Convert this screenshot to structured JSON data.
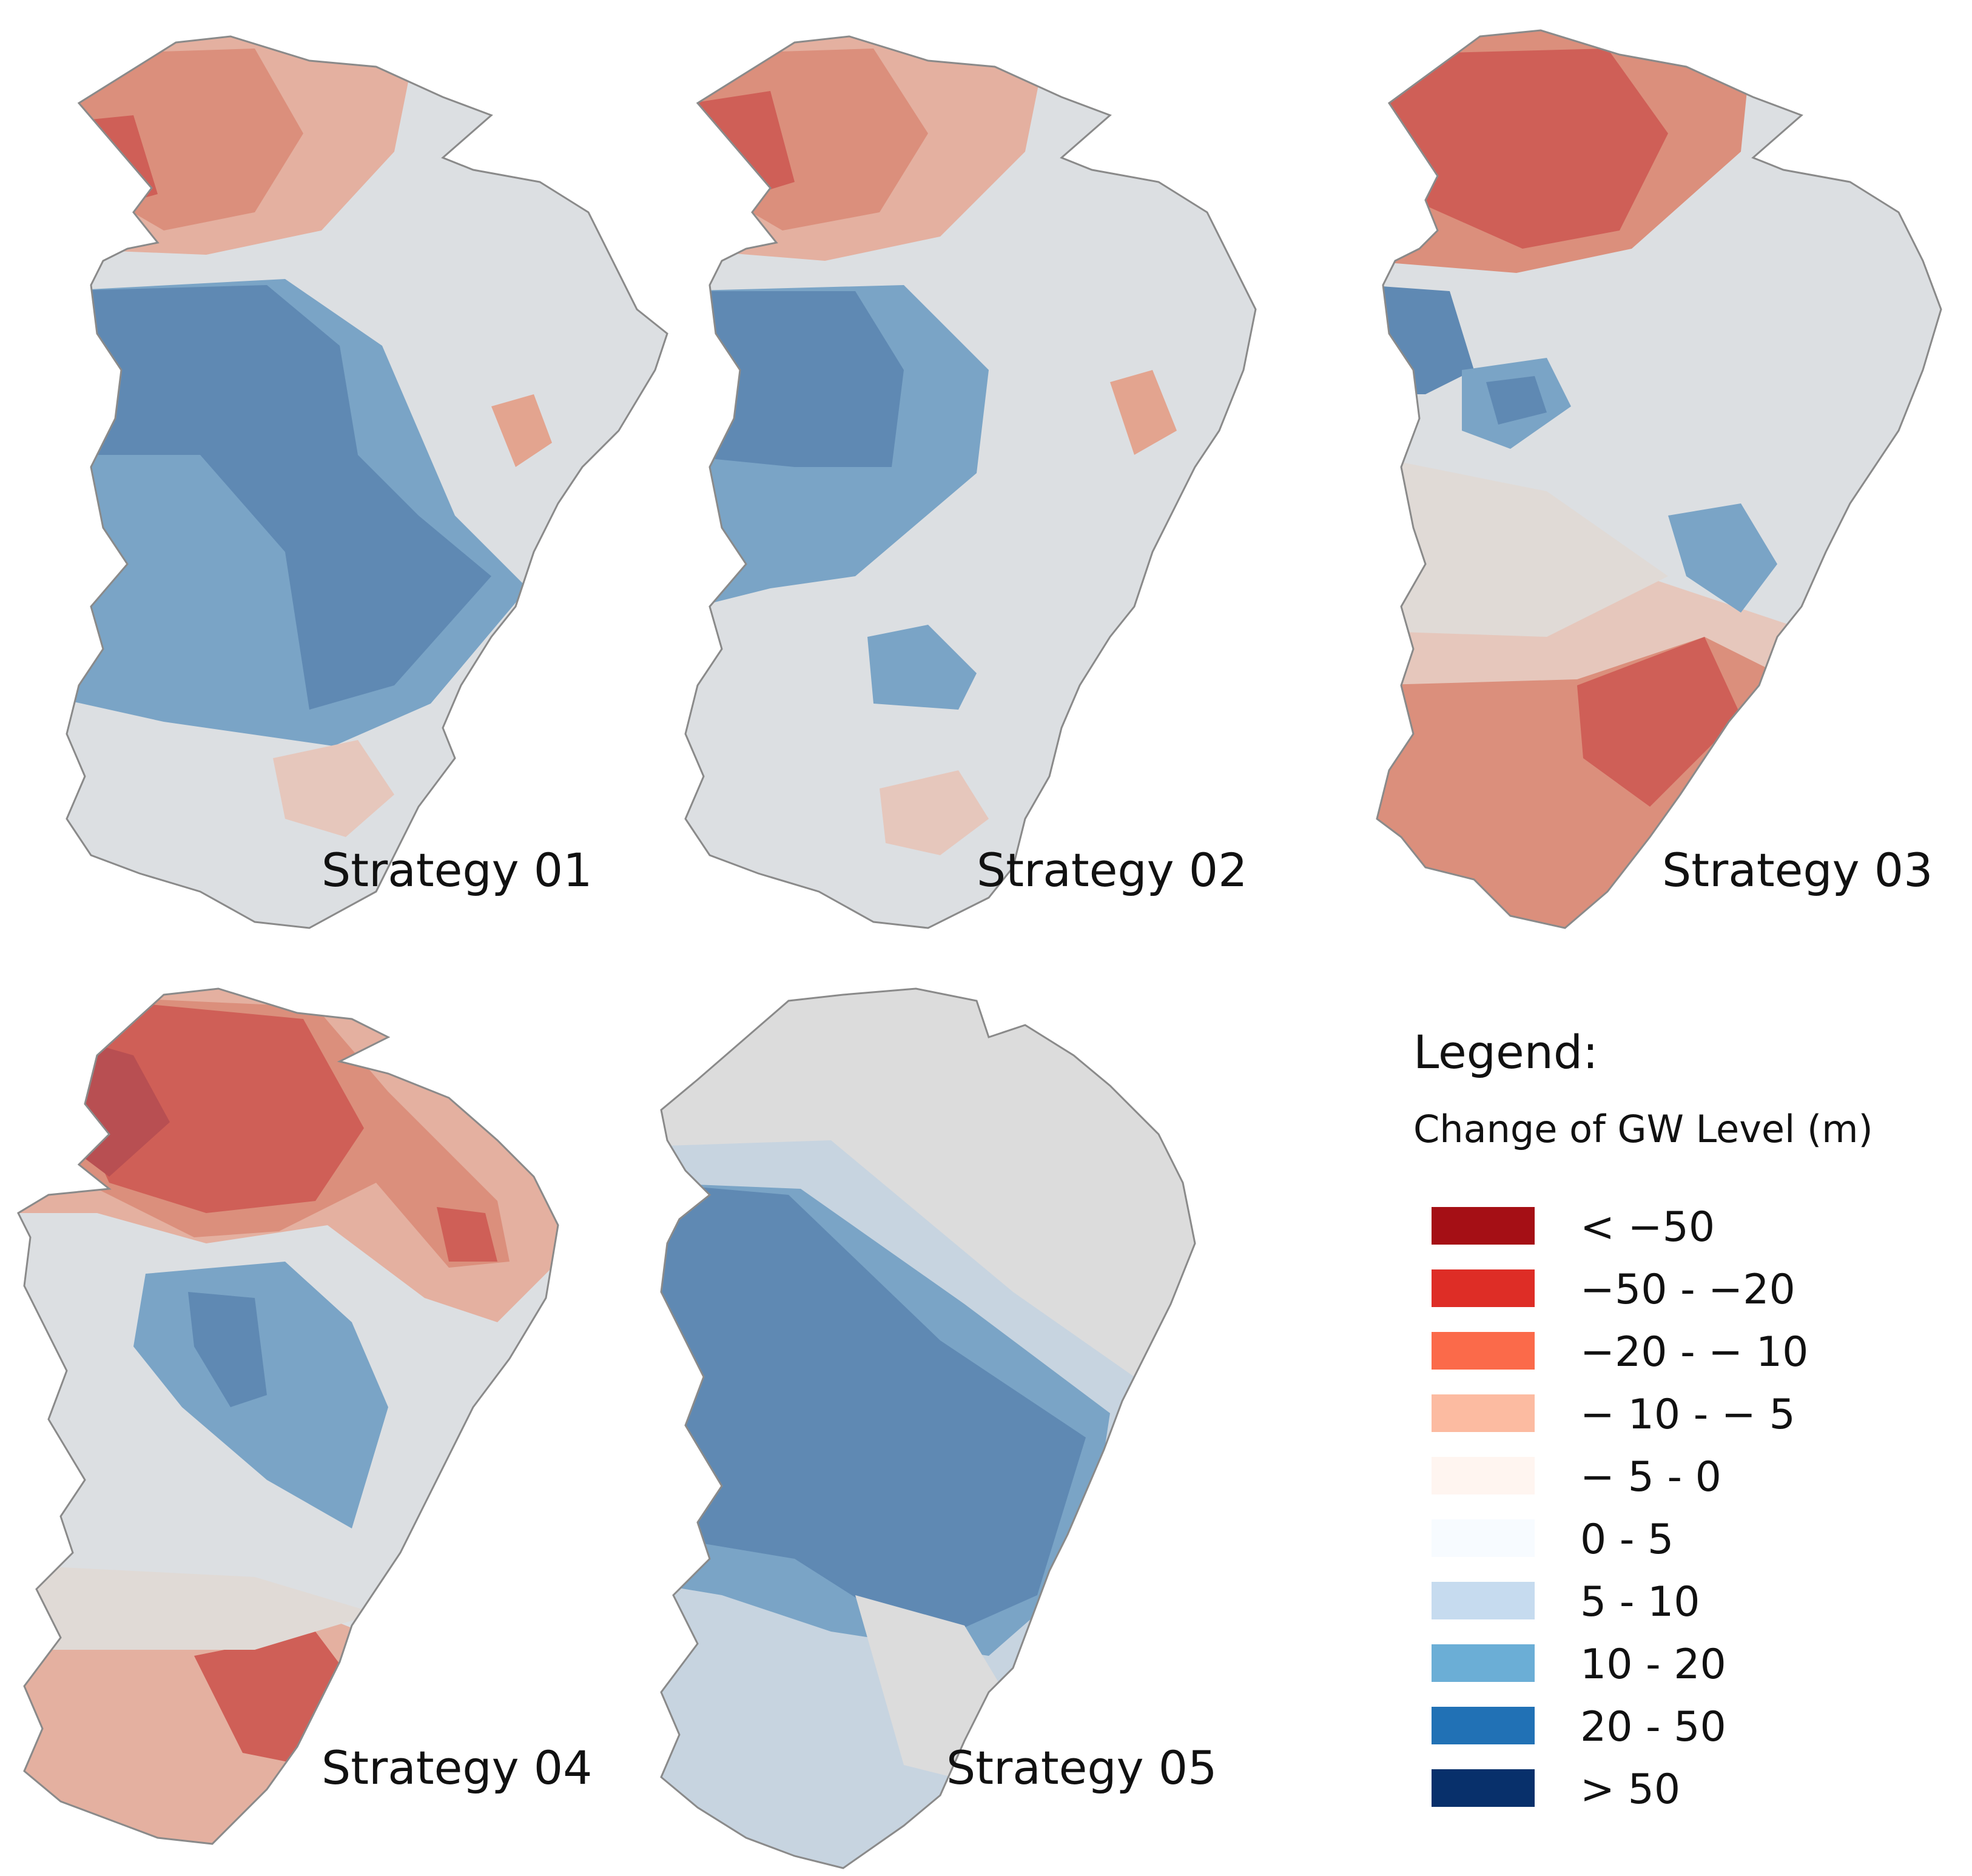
{
  "colors": {
    "class_lt_m50": "#a50f15",
    "class_m50_m20": "#de2d26",
    "class_m20_m10": "#fb6a4a",
    "class_m10_m5": "#fcbba1",
    "class_m5_0": "#fff5f0",
    "class_0_5": "#f7fbff",
    "class_5_10": "#c6dbef",
    "class_10_20": "#6baed6",
    "class_20_50": "#2171b5",
    "class_gt_50": "#08306b",
    "map_boundary": "#8a8a8a",
    "map_base": "#d9dcdf"
  },
  "panels": [
    {
      "id": "p1",
      "label": "Strategy 01"
    },
    {
      "id": "p2",
      "label": "Strategy 02"
    },
    {
      "id": "p3",
      "label": "Strategy 03"
    },
    {
      "id": "p4",
      "label": "Strategy 04"
    },
    {
      "id": "p5",
      "label": "Strategy 05"
    }
  ],
  "legend": {
    "title": "Legend:",
    "subtitle": "Change of GW Level (m)",
    "items": [
      {
        "label": "< −50",
        "color": "#a50f15"
      },
      {
        "label": "−50 - −20",
        "color": "#de2d26"
      },
      {
        "label": "−20 - − 10",
        "color": "#fb6a4a"
      },
      {
        "label": "− 10 - − 5",
        "color": "#fcbba1"
      },
      {
        "label": "− 5 - 0",
        "color": "#fff5f0"
      },
      {
        "label": "0 - 5",
        "color": "#f7fbff"
      },
      {
        "label": "5 - 10",
        "color": "#c6dbef"
      },
      {
        "label": "10 - 20",
        "color": "#6baed6"
      },
      {
        "label": "20 - 50",
        "color": "#2171b5"
      },
      {
        "label": "> 50",
        "color": "#08306b"
      }
    ]
  }
}
